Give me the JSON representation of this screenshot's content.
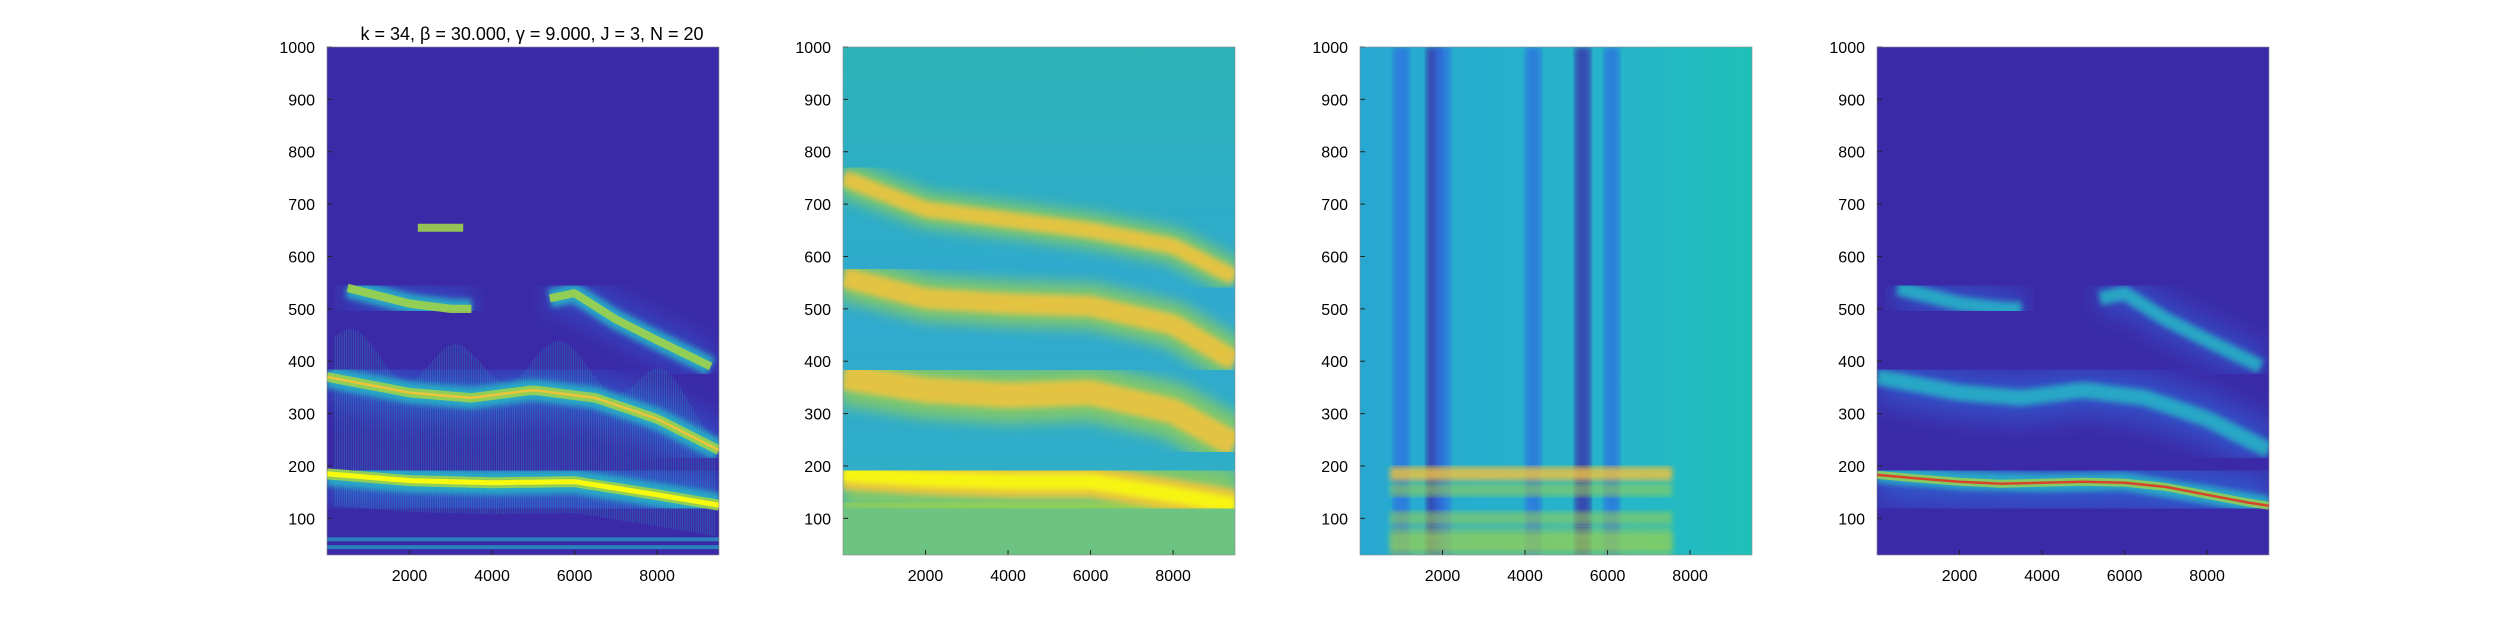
{
  "figure": {
    "title": "k = 34, β = 30.000, γ = 9.000, J = 3, N = 20"
  },
  "colors": {
    "background_low": "#3b2aa8",
    "mid_low": "#2f6fe0",
    "mid": "#25b7c6",
    "mid_high": "#9fd34a",
    "high": "#f6c33a",
    "peak": "#f9fb0e",
    "curve": "#d6452a"
  },
  "chart_data": [
    {
      "type": "heatmap",
      "panel": "sparse time-frequency representation",
      "title": "k = 34, β = 30.000, γ = 9.000, J = 3, N = 20",
      "xlim": [
        0,
        9500
      ],
      "ylim": [
        30,
        1000
      ],
      "x_ticks": [
        2000,
        4000,
        6000,
        8000
      ],
      "y_ticks": [
        100,
        200,
        300,
        400,
        500,
        600,
        700,
        800,
        900,
        1000
      ],
      "ridges": [
        {
          "name": "",
          "x": [
            0,
            2000,
            4000,
            6000,
            8000,
            9500
          ],
          "y": [
            185,
            172,
            168,
            170,
            145,
            125
          ],
          "intensity": 1.0
        },
        {
          "name": "",
          "x": [
            0,
            2000,
            3500,
            5000,
            6500,
            8000,
            9500
          ],
          "y": [
            370,
            340,
            330,
            345,
            330,
            290,
            230
          ],
          "intensity": 0.75
        },
        {
          "name": "",
          "x": [
            500,
            2000,
            3000,
            3500
          ],
          "y": [
            540,
            510,
            500,
            500
          ],
          "intensity": 0.55
        },
        {
          "name": "",
          "x": [
            5400,
            6000,
            7000,
            8000,
            9300
          ],
          "y": [
            520,
            530,
            480,
            440,
            390
          ],
          "intensity": 0.5
        },
        {
          "name": "",
          "x": [
            2200,
            3300
          ],
          "y": [
            655,
            655
          ],
          "intensity": 0.5
        }
      ]
    },
    {
      "type": "heatmap",
      "panel": "smoothed spectrogram",
      "title": "",
      "xlim": [
        0,
        9500
      ],
      "ylim": [
        30,
        1000
      ],
      "x_ticks": [
        2000,
        4000,
        6000,
        8000
      ],
      "y_ticks": [
        100,
        200,
        300,
        400,
        500,
        600,
        700,
        800,
        900,
        1000
      ],
      "ridges": [
        {
          "name": "",
          "x": [
            0,
            2000,
            4000,
            6000,
            8000,
            9500
          ],
          "y": [
            185,
            175,
            170,
            170,
            145,
            125
          ],
          "intensity": 1.0
        },
        {
          "name": "",
          "x": [
            0,
            2000,
            4000,
            6000,
            8000,
            9500
          ],
          "y": [
            370,
            345,
            335,
            340,
            305,
            240
          ],
          "intensity": 0.8
        },
        {
          "name": "",
          "x": [
            0,
            2000,
            4000,
            6000,
            8000,
            9500
          ],
          "y": [
            560,
            520,
            510,
            505,
            470,
            400
          ],
          "intensity": 0.65
        },
        {
          "name": "",
          "x": [
            0,
            2000,
            4000,
            6000,
            8000,
            9500
          ],
          "y": [
            750,
            690,
            670,
            650,
            620,
            560
          ],
          "intensity": 0.5
        }
      ]
    },
    {
      "type": "heatmap",
      "panel": "basis / template",
      "title": "",
      "xlim": [
        0,
        9500
      ],
      "ylim": [
        30,
        1000
      ],
      "x_ticks": [
        2000,
        4000,
        6000,
        8000
      ],
      "y_ticks": [
        100,
        200,
        300,
        400,
        500,
        600,
        700,
        800,
        900,
        1000
      ],
      "dark_columns": [
        1000,
        1800,
        2000,
        4200,
        5400,
        6100
      ],
      "bright_rows": [
        185,
        155,
        100,
        70,
        55,
        40
      ]
    },
    {
      "type": "heatmap",
      "panel": "representation with extracted curve",
      "title": "",
      "xlim": [
        0,
        9500
      ],
      "ylim": [
        30,
        1000
      ],
      "x_ticks": [
        2000,
        4000,
        6000,
        8000
      ],
      "y_ticks": [
        100,
        200,
        300,
        400,
        500,
        600,
        700,
        800,
        900,
        1000
      ],
      "curve": {
        "x": [
          0,
          1000,
          2000,
          3000,
          4000,
          5000,
          6000,
          7000,
          8000,
          9000,
          9500
        ],
        "y": [
          183,
          176,
          170,
          166,
          168,
          170,
          168,
          160,
          145,
          130,
          124
        ]
      }
    }
  ]
}
